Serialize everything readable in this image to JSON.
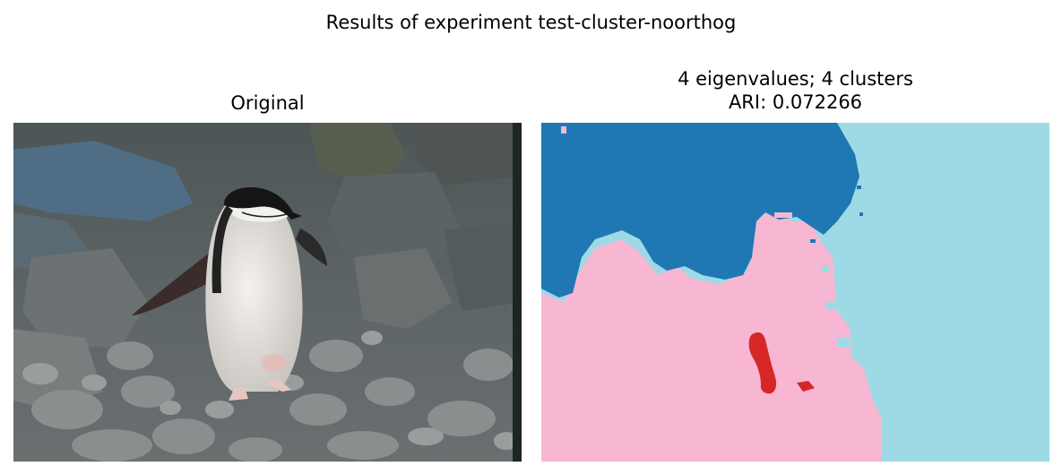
{
  "figure": {
    "suptitle": "Results of experiment test-cluster-noorthog"
  },
  "panels": [
    {
      "title": "Original",
      "content": "photo of a chinstrap penguin walking on grey rocks"
    },
    {
      "title_line1": "4 eigenvalues; 4 clusters",
      "title_line2": "ARI: 0.072266",
      "content": "segmentation map with 4 cluster colors"
    }
  ],
  "colors": {
    "cluster_blue": "#1f77b4",
    "cluster_pink": "#f7b6d2",
    "cluster_lightblue": "#9edae5",
    "cluster_red": "#d62728"
  }
}
